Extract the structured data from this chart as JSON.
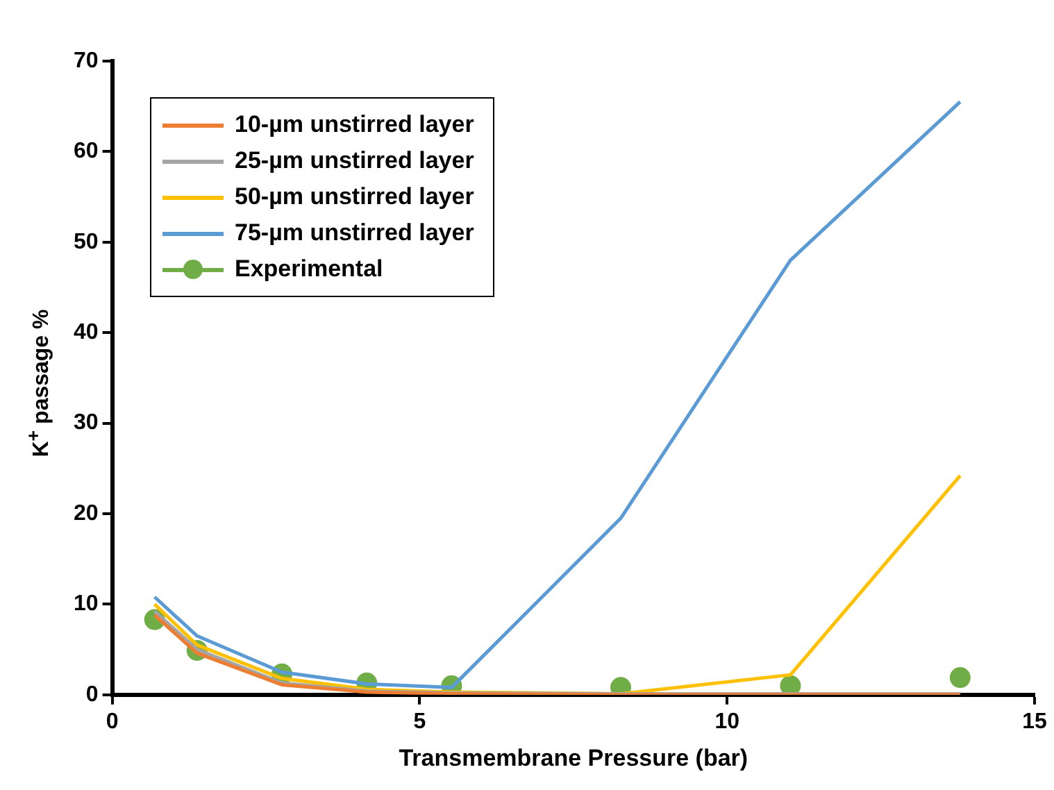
{
  "chart_data": {
    "type": "line",
    "xlabel": "Transmembrane Pressure (bar)",
    "ylabel": "K$^{+}$ passage %",
    "xlim": [
      0,
      15
    ],
    "xticks": [
      0,
      5,
      10,
      15
    ],
    "ylim": [
      0,
      70
    ],
    "yticks": [
      0,
      10,
      20,
      30,
      40,
      50,
      60,
      70
    ],
    "grid": false,
    "legend": "top left",
    "marker": "none",
    "line_style": "solid",
    "x": [
      0.69,
      1.38,
      2.76,
      4.14,
      5.52,
      8.27,
      11.03,
      13.79
    ],
    "series": [
      {
        "name": "10-µm unstirred layer",
        "color": "#ed7d31",
        "values": [
          8.8,
          4.6,
          1.1,
          0.3,
          0.1,
          0,
          0,
          0
        ]
      },
      {
        "name": "25-µm unstirred layer",
        "color": "#a5a5a5",
        "values": [
          9.2,
          5.0,
          1.3,
          0.4,
          0.2,
          0.1,
          0.1,
          0.1
        ]
      },
      {
        "name": "50-µm unstirred layer",
        "color": "#ffc000",
        "values": [
          10.0,
          5.5,
          1.8,
          0.6,
          0.3,
          0.1,
          2.2,
          24.2
        ]
      },
      {
        "name": "75-µm unstirred layer",
        "color": "#5b9bd5",
        "values": [
          10.8,
          6.5,
          2.5,
          1.2,
          0.8,
          19.5,
          48,
          65.5
        ]
      },
      {
        "name": "Experimental",
        "color": "#70ad47",
        "type": "scatter",
        "marker": "circle",
        "values": [
          8.3,
          4.9,
          2.3,
          1.3,
          1.0,
          0.8,
          1.0,
          1.9
        ]
      }
    ]
  }
}
